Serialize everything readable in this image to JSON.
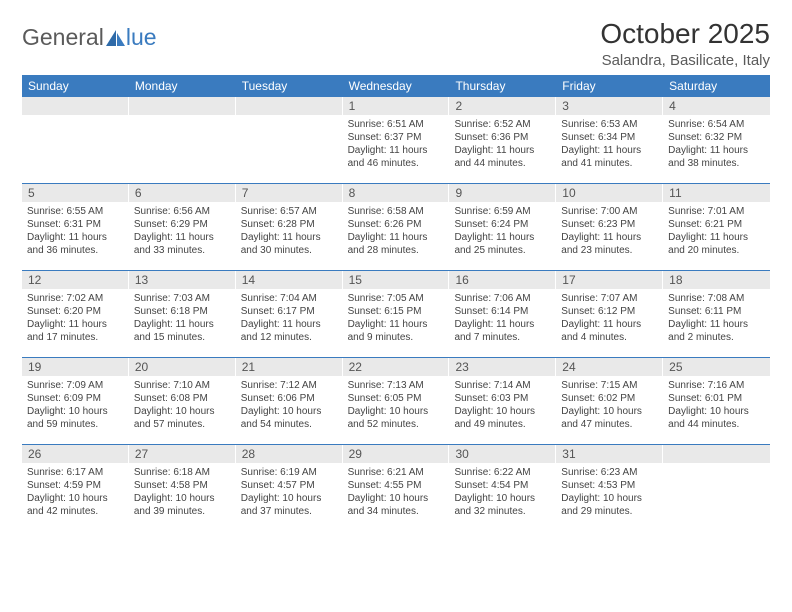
{
  "logo": {
    "text1": "General",
    "text2": "lue"
  },
  "title": "October 2025",
  "location": "Salandra, Basilicate, Italy",
  "colors": {
    "header_bg": "#3a7bbf",
    "header_text": "#ffffff",
    "daynum_bg": "#e9e9e9",
    "daynum_text": "#555555",
    "border": "#3a7bbf",
    "body_text": "#444444",
    "page_bg": "#ffffff"
  },
  "day_headers": [
    "Sunday",
    "Monday",
    "Tuesday",
    "Wednesday",
    "Thursday",
    "Friday",
    "Saturday"
  ],
  "weeks": [
    [
      {
        "day": "",
        "sunrise": "",
        "sunset": "",
        "daylight": ""
      },
      {
        "day": "",
        "sunrise": "",
        "sunset": "",
        "daylight": ""
      },
      {
        "day": "",
        "sunrise": "",
        "sunset": "",
        "daylight": ""
      },
      {
        "day": "1",
        "sunrise": "Sunrise: 6:51 AM",
        "sunset": "Sunset: 6:37 PM",
        "daylight": "Daylight: 11 hours and 46 minutes."
      },
      {
        "day": "2",
        "sunrise": "Sunrise: 6:52 AM",
        "sunset": "Sunset: 6:36 PM",
        "daylight": "Daylight: 11 hours and 44 minutes."
      },
      {
        "day": "3",
        "sunrise": "Sunrise: 6:53 AM",
        "sunset": "Sunset: 6:34 PM",
        "daylight": "Daylight: 11 hours and 41 minutes."
      },
      {
        "day": "4",
        "sunrise": "Sunrise: 6:54 AM",
        "sunset": "Sunset: 6:32 PM",
        "daylight": "Daylight: 11 hours and 38 minutes."
      }
    ],
    [
      {
        "day": "5",
        "sunrise": "Sunrise: 6:55 AM",
        "sunset": "Sunset: 6:31 PM",
        "daylight": "Daylight: 11 hours and 36 minutes."
      },
      {
        "day": "6",
        "sunrise": "Sunrise: 6:56 AM",
        "sunset": "Sunset: 6:29 PM",
        "daylight": "Daylight: 11 hours and 33 minutes."
      },
      {
        "day": "7",
        "sunrise": "Sunrise: 6:57 AM",
        "sunset": "Sunset: 6:28 PM",
        "daylight": "Daylight: 11 hours and 30 minutes."
      },
      {
        "day": "8",
        "sunrise": "Sunrise: 6:58 AM",
        "sunset": "Sunset: 6:26 PM",
        "daylight": "Daylight: 11 hours and 28 minutes."
      },
      {
        "day": "9",
        "sunrise": "Sunrise: 6:59 AM",
        "sunset": "Sunset: 6:24 PM",
        "daylight": "Daylight: 11 hours and 25 minutes."
      },
      {
        "day": "10",
        "sunrise": "Sunrise: 7:00 AM",
        "sunset": "Sunset: 6:23 PM",
        "daylight": "Daylight: 11 hours and 23 minutes."
      },
      {
        "day": "11",
        "sunrise": "Sunrise: 7:01 AM",
        "sunset": "Sunset: 6:21 PM",
        "daylight": "Daylight: 11 hours and 20 minutes."
      }
    ],
    [
      {
        "day": "12",
        "sunrise": "Sunrise: 7:02 AM",
        "sunset": "Sunset: 6:20 PM",
        "daylight": "Daylight: 11 hours and 17 minutes."
      },
      {
        "day": "13",
        "sunrise": "Sunrise: 7:03 AM",
        "sunset": "Sunset: 6:18 PM",
        "daylight": "Daylight: 11 hours and 15 minutes."
      },
      {
        "day": "14",
        "sunrise": "Sunrise: 7:04 AM",
        "sunset": "Sunset: 6:17 PM",
        "daylight": "Daylight: 11 hours and 12 minutes."
      },
      {
        "day": "15",
        "sunrise": "Sunrise: 7:05 AM",
        "sunset": "Sunset: 6:15 PM",
        "daylight": "Daylight: 11 hours and 9 minutes."
      },
      {
        "day": "16",
        "sunrise": "Sunrise: 7:06 AM",
        "sunset": "Sunset: 6:14 PM",
        "daylight": "Daylight: 11 hours and 7 minutes."
      },
      {
        "day": "17",
        "sunrise": "Sunrise: 7:07 AM",
        "sunset": "Sunset: 6:12 PM",
        "daylight": "Daylight: 11 hours and 4 minutes."
      },
      {
        "day": "18",
        "sunrise": "Sunrise: 7:08 AM",
        "sunset": "Sunset: 6:11 PM",
        "daylight": "Daylight: 11 hours and 2 minutes."
      }
    ],
    [
      {
        "day": "19",
        "sunrise": "Sunrise: 7:09 AM",
        "sunset": "Sunset: 6:09 PM",
        "daylight": "Daylight: 10 hours and 59 minutes."
      },
      {
        "day": "20",
        "sunrise": "Sunrise: 7:10 AM",
        "sunset": "Sunset: 6:08 PM",
        "daylight": "Daylight: 10 hours and 57 minutes."
      },
      {
        "day": "21",
        "sunrise": "Sunrise: 7:12 AM",
        "sunset": "Sunset: 6:06 PM",
        "daylight": "Daylight: 10 hours and 54 minutes."
      },
      {
        "day": "22",
        "sunrise": "Sunrise: 7:13 AM",
        "sunset": "Sunset: 6:05 PM",
        "daylight": "Daylight: 10 hours and 52 minutes."
      },
      {
        "day": "23",
        "sunrise": "Sunrise: 7:14 AM",
        "sunset": "Sunset: 6:03 PM",
        "daylight": "Daylight: 10 hours and 49 minutes."
      },
      {
        "day": "24",
        "sunrise": "Sunrise: 7:15 AM",
        "sunset": "Sunset: 6:02 PM",
        "daylight": "Daylight: 10 hours and 47 minutes."
      },
      {
        "day": "25",
        "sunrise": "Sunrise: 7:16 AM",
        "sunset": "Sunset: 6:01 PM",
        "daylight": "Daylight: 10 hours and 44 minutes."
      }
    ],
    [
      {
        "day": "26",
        "sunrise": "Sunrise: 6:17 AM",
        "sunset": "Sunset: 4:59 PM",
        "daylight": "Daylight: 10 hours and 42 minutes."
      },
      {
        "day": "27",
        "sunrise": "Sunrise: 6:18 AM",
        "sunset": "Sunset: 4:58 PM",
        "daylight": "Daylight: 10 hours and 39 minutes."
      },
      {
        "day": "28",
        "sunrise": "Sunrise: 6:19 AM",
        "sunset": "Sunset: 4:57 PM",
        "daylight": "Daylight: 10 hours and 37 minutes."
      },
      {
        "day": "29",
        "sunrise": "Sunrise: 6:21 AM",
        "sunset": "Sunset: 4:55 PM",
        "daylight": "Daylight: 10 hours and 34 minutes."
      },
      {
        "day": "30",
        "sunrise": "Sunrise: 6:22 AM",
        "sunset": "Sunset: 4:54 PM",
        "daylight": "Daylight: 10 hours and 32 minutes."
      },
      {
        "day": "31",
        "sunrise": "Sunrise: 6:23 AM",
        "sunset": "Sunset: 4:53 PM",
        "daylight": "Daylight: 10 hours and 29 minutes."
      },
      {
        "day": "",
        "sunrise": "",
        "sunset": "",
        "daylight": ""
      }
    ]
  ]
}
